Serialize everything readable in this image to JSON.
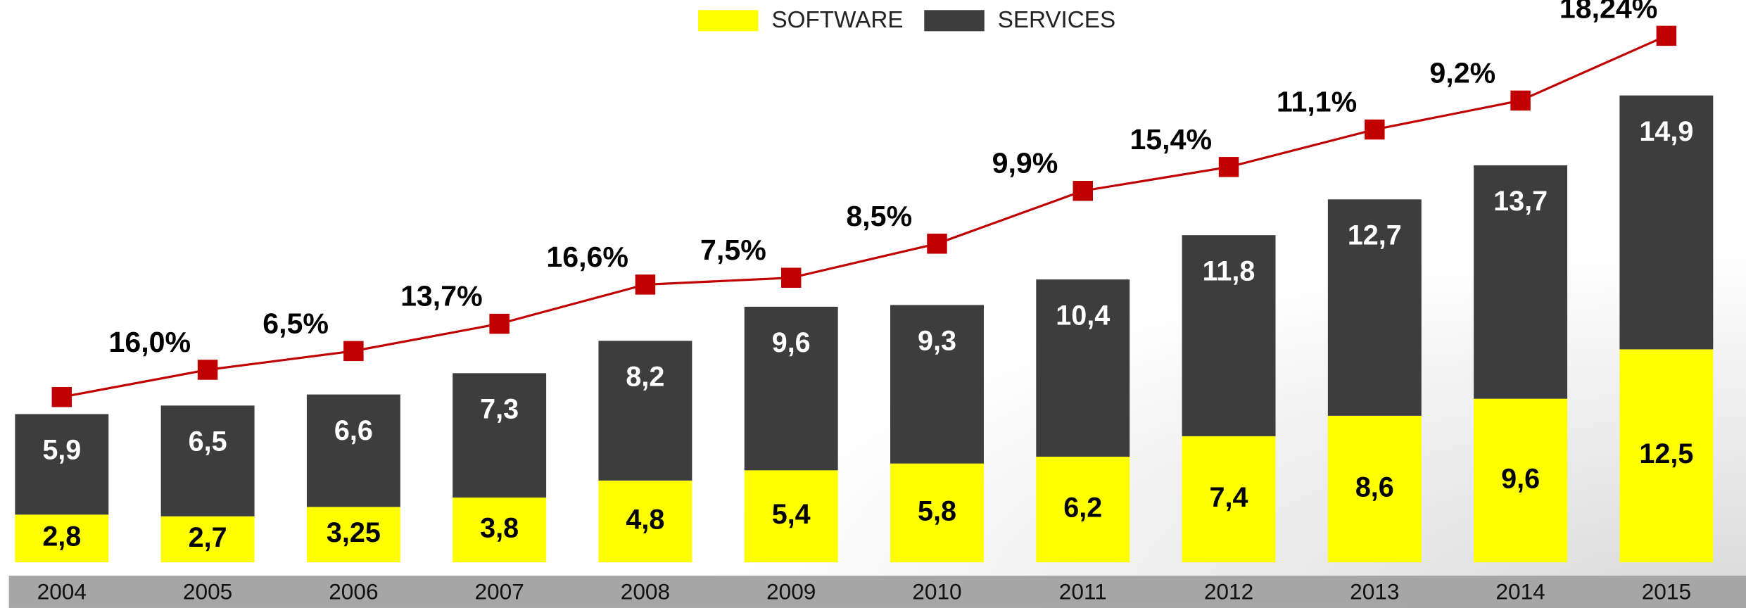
{
  "chart_data": {
    "type": "bar",
    "stacked": true,
    "categories": [
      "2004",
      "2005",
      "2006",
      "2007",
      "2008",
      "2009",
      "2010",
      "2011",
      "2012",
      "2013",
      "2014",
      "2015"
    ],
    "series": [
      {
        "name": "SOFTWARE",
        "color": "#ffff00",
        "label_color": "#000000",
        "values": [
          2.8,
          2.7,
          3.25,
          3.8,
          4.8,
          5.4,
          5.8,
          6.2,
          7.4,
          8.6,
          9.6,
          12.5
        ],
        "value_labels": [
          "2,8",
          "2,7",
          "3,25",
          "3,8",
          "4,8",
          "5,4",
          "5,8",
          "6,2",
          "7,4",
          "8,6",
          "9,6",
          "12,5"
        ]
      },
      {
        "name": "SERVICES",
        "color": "#3d3d3d",
        "label_color": "#ffffff",
        "values": [
          5.9,
          6.5,
          6.6,
          7.3,
          8.2,
          9.6,
          9.3,
          10.4,
          11.8,
          12.7,
          13.7,
          14.9
        ],
        "value_labels": [
          "5,9",
          "6,5",
          "6,6",
          "7,3",
          "8,2",
          "9,6",
          "9,3",
          "10,4",
          "11,8",
          "12,7",
          "13,7",
          "14,9"
        ]
      }
    ],
    "line": {
      "color": "#c00000",
      "values": [
        9.7,
        11.3,
        12.4,
        14.0,
        16.3,
        16.7,
        18.7,
        21.8,
        23.2,
        25.4,
        27.1,
        30.9
      ],
      "growth_labels": [
        null,
        "16,0%",
        "6,5%",
        "13,7%",
        "16,6%",
        "7,5%",
        "8,5%",
        "9,9%",
        "15,4%",
        "11,1%",
        "9,2%",
        "18,24%"
      ]
    },
    "ylim": [
      0,
      33
    ],
    "legend": "top"
  }
}
